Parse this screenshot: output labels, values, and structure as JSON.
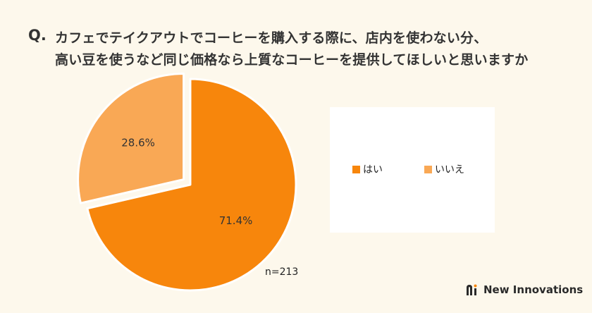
{
  "question": {
    "label": "Q.",
    "line1": "カフェでテイクアウトでコーヒーを購入する際に、店内を使わない分、",
    "line2": "高い豆を使うなど同じ価格なら上質なコーヒーを提供してほしいと思いますか"
  },
  "chart_data": {
    "type": "pie",
    "exploded": true,
    "categories": [
      "はい",
      "いいえ"
    ],
    "values": [
      71.4,
      28.6
    ],
    "value_labels": [
      "71.4%",
      "28.6%"
    ],
    "colors": [
      "#f7860c",
      "#f9a855"
    ],
    "legend_position": "right",
    "note": "n=213"
  },
  "legend": {
    "items": [
      {
        "label": "はい",
        "color": "#f7860c"
      },
      {
        "label": "いいえ",
        "color": "#f9a855"
      }
    ]
  },
  "brand": {
    "name": "New Innovations",
    "icon": "new-innovations-logo-icon"
  }
}
